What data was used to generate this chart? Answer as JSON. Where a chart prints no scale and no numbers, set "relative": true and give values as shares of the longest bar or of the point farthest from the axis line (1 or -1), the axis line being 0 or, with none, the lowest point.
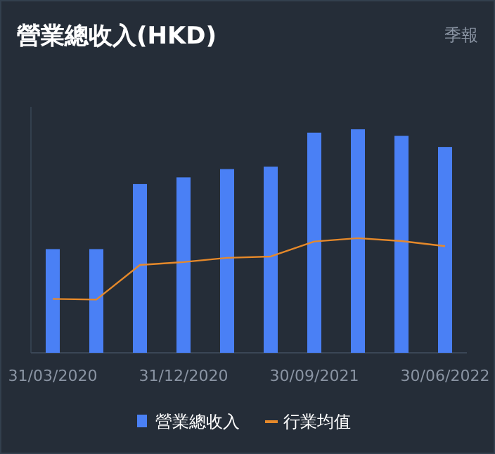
{
  "chart_data": {
    "type": "bar",
    "title": "營業總收入(HKD)",
    "annotations": [
      "季報"
    ],
    "relative": true,
    "legend": "bottom",
    "categories": [
      "31/03/2020",
      null,
      null,
      "31/12/2020",
      null,
      null,
      "30/09/2021",
      null,
      null,
      "30/06/2022"
    ],
    "series": [
      {
        "name": "營業總收入",
        "color": "#4a80f5",
        "values": [
          0.464,
          0.464,
          0.755,
          0.785,
          0.822,
          0.833,
          0.985,
          1,
          0.971,
          0.921
        ]
      },
      {
        "name": "行業均值",
        "type": "line",
        "color": "#e6892a",
        "values": [
          0.241,
          0.238,
          0.393,
          0.406,
          0.425,
          0.431,
          0.498,
          0.513,
          0.5,
          0.477
        ]
      }
    ]
  }
}
